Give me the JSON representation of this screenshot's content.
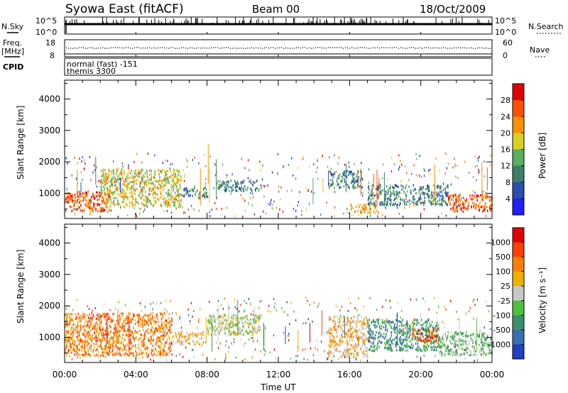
{
  "header": {
    "station": "Syowa East (fitACF)",
    "beam": "Beam 00",
    "date": "18/Oct/2009"
  },
  "top_panels": {
    "nsky_label": "N.Sky",
    "nsky_ticks": [
      "10^5",
      "10^0"
    ],
    "nsearch_label": "N.Search",
    "nsearch_ticks": [
      "10^5",
      "10^0"
    ],
    "freq_label": "Freq.",
    "freq_unit": "[MHz]",
    "freq_ticks": [
      "18",
      "8"
    ],
    "nave_label": "Nave",
    "nave_ticks": [
      "60",
      "0"
    ],
    "cpid_label": "CPID",
    "cpid_line1": "normal (fast) -151",
    "cpid_line2": "themis 3300"
  },
  "chart_data": [
    {
      "type": "heatmap",
      "panel": "power",
      "ylabel": "Slant Range [km]",
      "ylim": [
        200,
        4600
      ],
      "yticks": [
        "4000",
        "3000",
        "2000",
        "1000"
      ],
      "xlim": [
        "00:00",
        "24:00"
      ],
      "colorbar_label": "Power [dB]",
      "colorbar_ticks": [
        "28",
        "24",
        "20",
        "16",
        "12",
        "8",
        "4"
      ],
      "colors": [
        "#2020ff",
        "#2a4fb0",
        "#3d7f6a",
        "#58b060",
        "#d8d020",
        "#ff9000",
        "#ff5000",
        "#e00000"
      ],
      "regions": [
        {
          "t0": 0.0,
          "t1": 2.5,
          "r0": 450,
          "r1": 1100,
          "level": 6
        },
        {
          "t0": 2.0,
          "t1": 6.5,
          "r0": 600,
          "r1": 1800,
          "level": 4
        },
        {
          "t0": 6.5,
          "t1": 8.0,
          "r0": 900,
          "r1": 1200,
          "level": 2
        },
        {
          "t0": 8.5,
          "t1": 11.0,
          "r0": 1100,
          "r1": 1450,
          "level": 2
        },
        {
          "t0": 14.8,
          "t1": 16.7,
          "r0": 1200,
          "r1": 1750,
          "level": 2
        },
        {
          "t0": 16.0,
          "t1": 17.5,
          "r0": 400,
          "r1": 700,
          "level": 5
        },
        {
          "t0": 17.0,
          "t1": 21.5,
          "r0": 650,
          "r1": 1300,
          "level": 2
        },
        {
          "t0": 21.5,
          "t1": 24.0,
          "r0": 450,
          "r1": 1000,
          "level": 6
        }
      ]
    },
    {
      "type": "heatmap",
      "panel": "velocity",
      "ylabel": "Slant Range [km]",
      "ylim": [
        200,
        4600
      ],
      "yticks": [
        "4000",
        "3000",
        "2000",
        "1000"
      ],
      "xlim": [
        "00:00",
        "24:00"
      ],
      "colorbar_label": "Velocity [m s⁻¹]",
      "colorbar_ticks": [
        "1000",
        "500",
        "100",
        "25",
        "-25",
        "-100",
        "-500",
        "-1000"
      ],
      "colors": [
        "#2040c0",
        "#3a6fb0",
        "#3d8f6a",
        "#50c040",
        "#c8c8c8",
        "#f0b000",
        "#ff8000",
        "#ff4000",
        "#e00000"
      ],
      "regions": [
        {
          "t0": 0.0,
          "t1": 6.0,
          "r0": 450,
          "r1": 1800,
          "level": 6
        },
        {
          "t0": 6.0,
          "t1": 7.8,
          "r0": 800,
          "r1": 1200,
          "level": 5
        },
        {
          "t0": 8.0,
          "t1": 11.0,
          "r0": 1100,
          "r1": 1750,
          "level": 4
        },
        {
          "t0": 14.8,
          "t1": 17.0,
          "r0": 400,
          "r1": 1700,
          "level": 5
        },
        {
          "t0": 17.0,
          "t1": 21.0,
          "r0": 600,
          "r1": 1600,
          "level": 2
        },
        {
          "t0": 19.5,
          "t1": 21.0,
          "r0": 900,
          "r1": 1300,
          "level": 7
        },
        {
          "t0": 21.0,
          "t1": 24.0,
          "r0": 450,
          "r1": 1200,
          "level": 3
        }
      ]
    }
  ],
  "xaxis": {
    "ticks": [
      "00:00",
      "04:00",
      "08:00",
      "12:00",
      "16:00",
      "20:00",
      "00:00"
    ],
    "label": "Time UT"
  }
}
